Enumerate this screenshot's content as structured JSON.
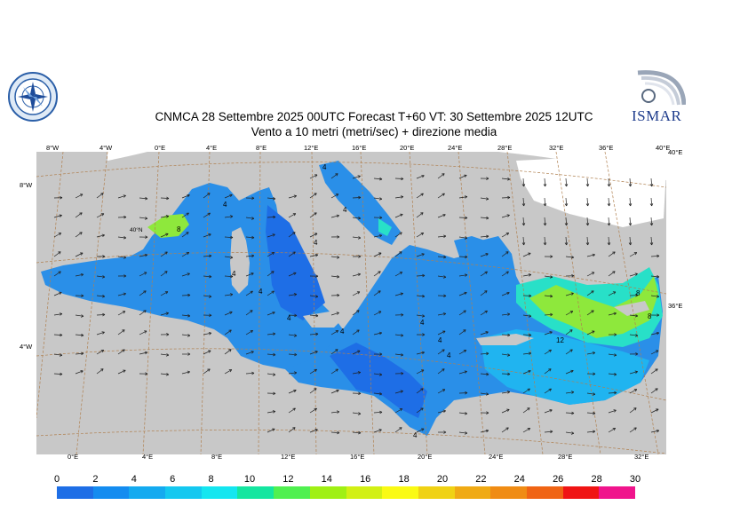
{
  "title": {
    "line1": "CNMCA 28 Settembre 2025 00UTC Forecast T+60 VT: 30 Settembre 2025 12UTC",
    "line2": "Vento a 10 metri (metri/sec) + direzione media"
  },
  "logo_right_text": "ISMAR",
  "top_lon_labels": [
    "8°W",
    "4°W",
    "0°E",
    "4°E",
    "8°E",
    "12°E",
    "16°E",
    "20°E",
    "24°E",
    "28°E",
    "32°E",
    "36°E",
    "40°E"
  ],
  "bottom_lon_labels": [
    "0°E",
    "4°E",
    "8°E",
    "12°E",
    "16°E",
    "20°E",
    "24°E",
    "28°E",
    "32°E"
  ],
  "left_lat_labels": [
    "8°W",
    "4°W"
  ],
  "right_lat_labels": [
    "40°E",
    "36°E"
  ],
  "inline_lat_label": "40°N",
  "contour_labels": [
    "4",
    "8",
    "4",
    "4",
    "4",
    "4",
    "4",
    "4",
    "4",
    "4",
    "4",
    "4",
    "8",
    "8",
    "12",
    "4"
  ],
  "colorbar": {
    "ticks": [
      "0",
      "2",
      "4",
      "6",
      "8",
      "10",
      "12",
      "14",
      "16",
      "18",
      "20",
      "22",
      "24",
      "26",
      "28",
      "30"
    ],
    "colors": [
      "#1e6ee6",
      "#148cf0",
      "#14aaf0",
      "#14c8f0",
      "#14e6f0",
      "#14e6a0",
      "#50f050",
      "#a0f014",
      "#d2f014",
      "#fafa14",
      "#f0d214",
      "#f0aa14",
      "#f08c14",
      "#f06414",
      "#f01414",
      "#f0148c"
    ]
  },
  "colors": {
    "land": "#c8c8c8",
    "sea_base": "#2a8fe8",
    "sea_dark": "#1e6ee6",
    "sea_light": "#20b4f0",
    "wind_strong": "#8ee83c",
    "wind_mid": "#28e0c8",
    "graticule": "#b08050"
  }
}
